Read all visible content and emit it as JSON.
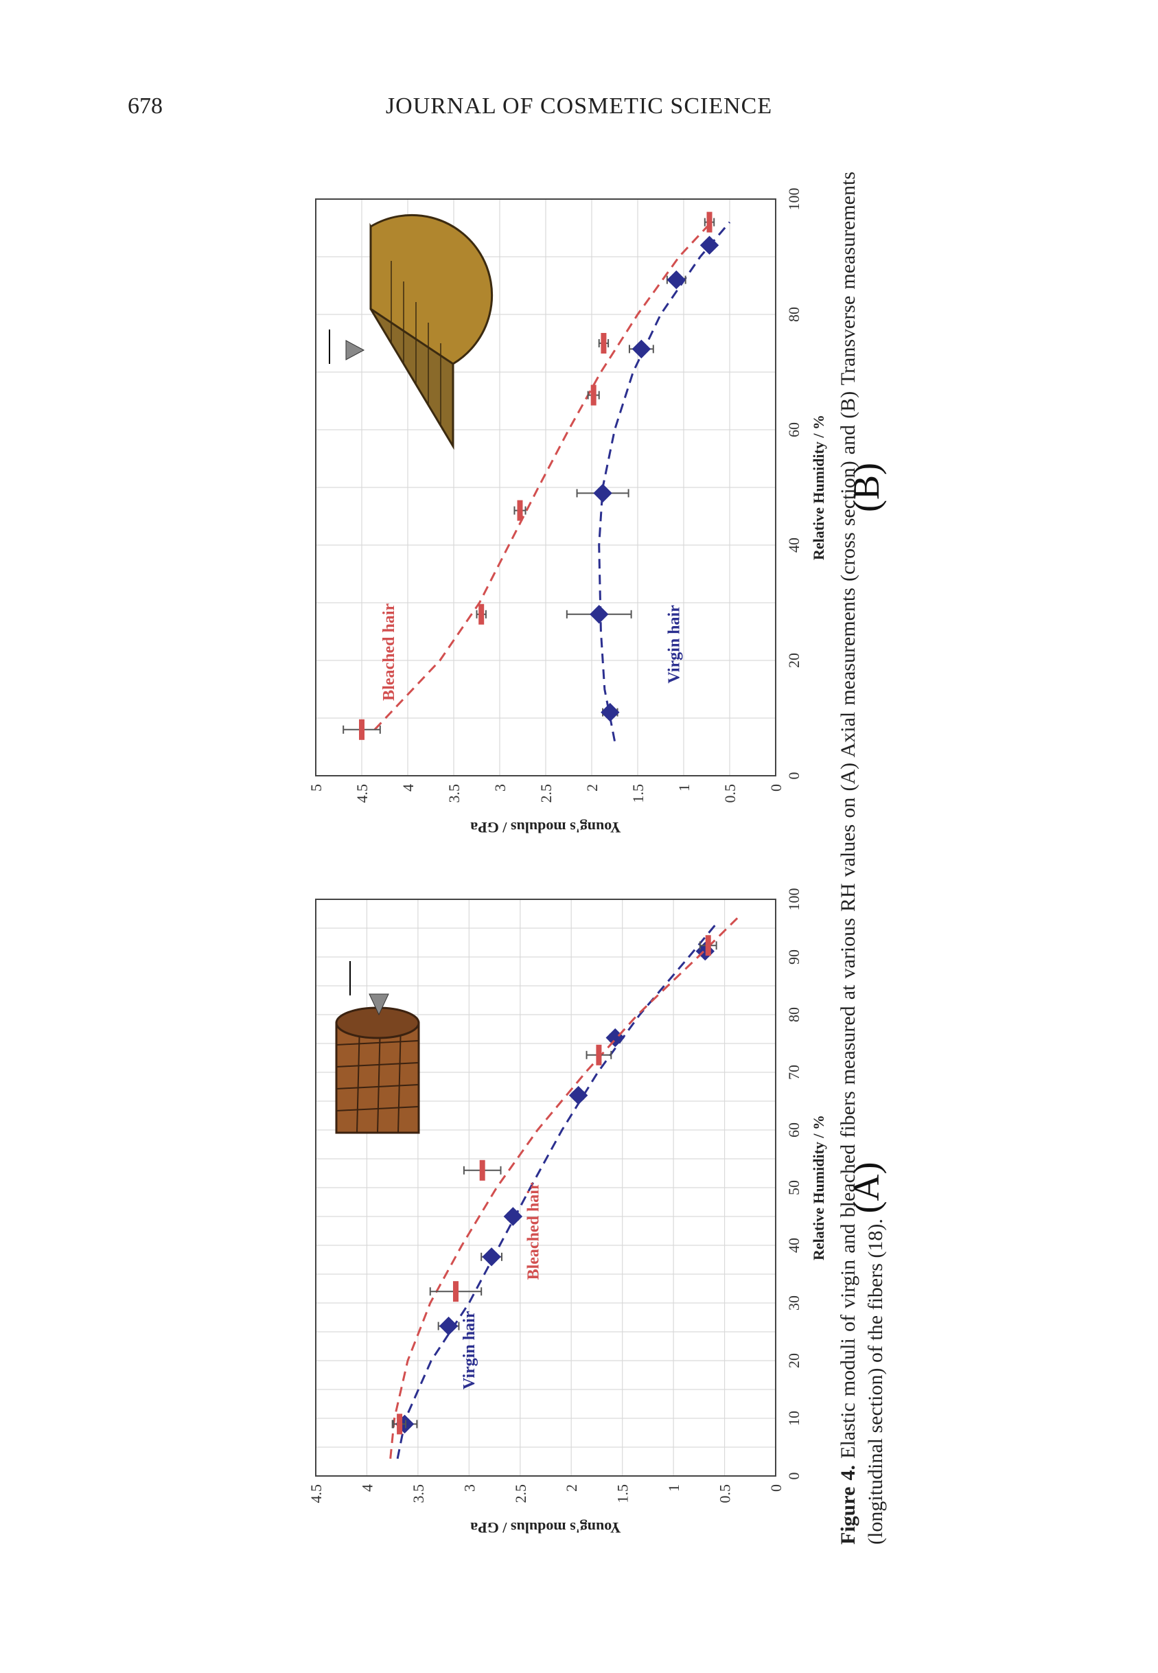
{
  "header": {
    "page_number": "678",
    "journal": "JOURNAL OF COSMETIC SCIENCE"
  },
  "caption": {
    "label": "Figure 4.",
    "text": "Elastic moduli of virgin and bleached fibers measured at various RH values on (A) Axial measurements (cross section) and (B) Transverse measurements (longitudinal section) of the fibers (18)."
  },
  "colors": {
    "virgin": "#2b2f8f",
    "bleached": "#d24f4f"
  },
  "chart_data": [
    {
      "panel_label": "(A)",
      "type": "scatter",
      "xlabel": "Relative Humidity / %",
      "ylabel": "Young's modulus / GPa",
      "xlim": [
        0,
        100
      ],
      "ylim": [
        0,
        4.5
      ],
      "x_ticks": [
        "0",
        "10",
        "20",
        "30",
        "40",
        "50",
        "60",
        "70",
        "80",
        "90",
        "100"
      ],
      "y_ticks": [
        "0",
        "0.5",
        "1",
        "1.5",
        "2",
        "2.5",
        "3",
        "3.5",
        "4",
        "4.5"
      ],
      "grid": true,
      "series": [
        {
          "name": "Virgin hair",
          "marker": "diamond",
          "color": "#2b2f8f",
          "points": [
            [
              9,
              3.63,
              0.12
            ],
            [
              26,
              3.2,
              0.1
            ],
            [
              38,
              2.78,
              0.1
            ],
            [
              45,
              2.57,
              0.05
            ],
            [
              66,
              1.93,
              0.05
            ],
            [
              76,
              1.57,
              0.05
            ],
            [
              91,
              0.69,
              0.05
            ]
          ],
          "fit": [
            [
              3,
              3.7
            ],
            [
              10,
              3.62
            ],
            [
              20,
              3.37
            ],
            [
              30,
              3.0
            ],
            [
              40,
              2.7
            ],
            [
              50,
              2.4
            ],
            [
              60,
              2.09
            ],
            [
              70,
              1.74
            ],
            [
              80,
              1.33
            ],
            [
              90,
              0.85
            ],
            [
              96,
              0.57
            ]
          ]
        },
        {
          "name": "Bleached hair",
          "marker": "bar",
          "color": "#d24f4f",
          "points": [
            [
              9,
              3.68,
              0.06
            ],
            [
              32,
              3.13,
              0.25
            ],
            [
              53,
              2.87,
              0.18
            ],
            [
              73,
              1.73,
              0.12
            ],
            [
              92,
              0.66,
              0.08
            ]
          ],
          "fit": [
            [
              3,
              3.77
            ],
            [
              10,
              3.73
            ],
            [
              20,
              3.6
            ],
            [
              30,
              3.38
            ],
            [
              40,
              3.07
            ],
            [
              50,
              2.73
            ],
            [
              60,
              2.33
            ],
            [
              70,
              1.86
            ],
            [
              80,
              1.35
            ],
            [
              90,
              0.76
            ],
            [
              97,
              0.36
            ]
          ]
        }
      ]
    },
    {
      "panel_label": "(B)",
      "type": "scatter",
      "xlabel": "Relative Humidity / %",
      "ylabel": "Young's modulus / GPa",
      "xlim": [
        0,
        100
      ],
      "ylim": [
        0,
        5
      ],
      "x_ticks": [
        "0",
        "20",
        "40",
        "60",
        "80",
        "100"
      ],
      "y_ticks": [
        "0",
        "0.5",
        "1",
        "1.5",
        "2",
        "2.5",
        "3",
        "3.5",
        "4",
        "4.5",
        "5"
      ],
      "grid": true,
      "series": [
        {
          "name": "Virgin hair",
          "marker": "diamond",
          "color": "#2b2f8f",
          "points": [
            [
              11,
              1.8,
              0.08
            ],
            [
              28,
              1.92,
              0.35
            ],
            [
              49,
              1.88,
              0.28
            ],
            [
              74,
              1.46,
              0.13
            ],
            [
              86,
              1.08,
              0.1
            ],
            [
              92,
              0.72,
              0.05
            ]
          ],
          "fit": [
            [
              6,
              1.75
            ],
            [
              15,
              1.86
            ],
            [
              25,
              1.9
            ],
            [
              40,
              1.92
            ],
            [
              50,
              1.88
            ],
            [
              60,
              1.75
            ],
            [
              70,
              1.55
            ],
            [
              80,
              1.25
            ],
            [
              90,
              0.82
            ],
            [
              96,
              0.5
            ]
          ]
        },
        {
          "name": "Bleached hair",
          "marker": "bar",
          "color": "#d24f4f",
          "points": [
            [
              8,
              4.5,
              0.2
            ],
            [
              28,
              3.2,
              0.05
            ],
            [
              46,
              2.78,
              0.06
            ],
            [
              66,
              1.98,
              0.06
            ],
            [
              75,
              1.87,
              0.05
            ],
            [
              96,
              0.72,
              0.05
            ]
          ],
          "fit": [
            [
              8,
              4.36
            ],
            [
              20,
              3.65
            ],
            [
              30,
              3.22
            ],
            [
              40,
              2.9
            ],
            [
              50,
              2.58
            ],
            [
              60,
              2.25
            ],
            [
              70,
              1.9
            ],
            [
              80,
              1.5
            ],
            [
              90,
              1.05
            ],
            [
              96,
              0.7
            ]
          ]
        }
      ]
    }
  ]
}
